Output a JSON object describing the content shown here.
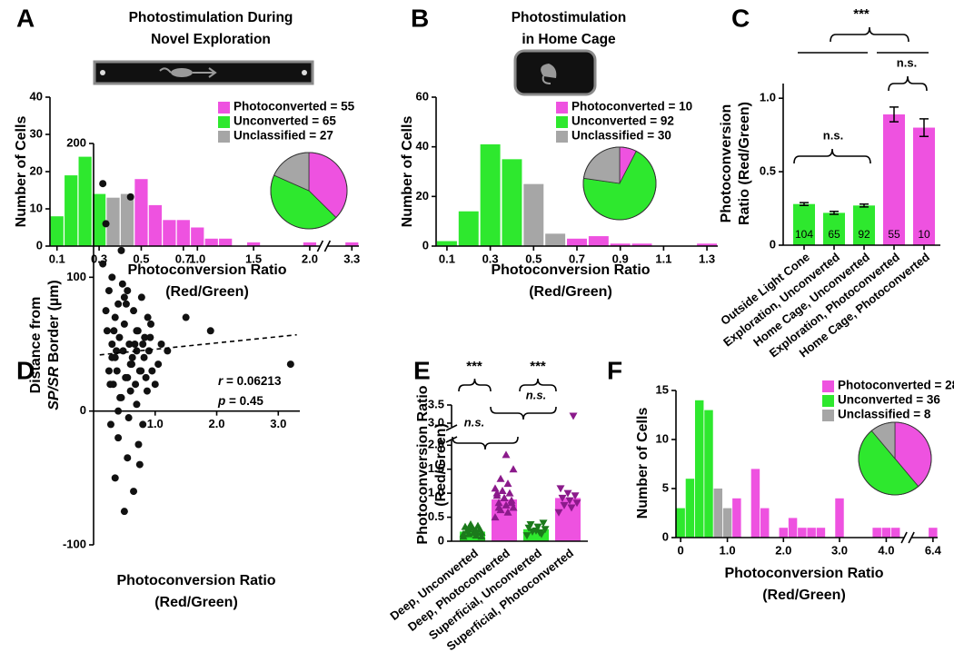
{
  "chart_data": [
    {
      "type": "histogram",
      "panel": "A",
      "title": [
        "Photostimulation During",
        "Novel Exploration"
      ],
      "xlabel": [
        "Photoconversion Ratio",
        "(Red/Green)"
      ],
      "ylabel": "Number of Cells",
      "categories": [
        "0.1",
        null,
        null,
        "0.3",
        null,
        null,
        "0.5",
        null,
        null,
        "0.7",
        "1.0",
        null,
        null,
        null,
        "1.5",
        null,
        null,
        null,
        "2.0",
        null,
        null,
        "3.3"
      ],
      "values": [
        8,
        19,
        24,
        14,
        13,
        14,
        18,
        11,
        7,
        7,
        5,
        2,
        2,
        0,
        1,
        0,
        0,
        0,
        1,
        0,
        0,
        1
      ],
      "colors": [
        "#2ee82e",
        "#2ee82e",
        "#2ee82e",
        "#2ee82e",
        "#a6a6a6",
        "#a6a6a6",
        "#ee52e0",
        "#ee52e0",
        "#ee52e0",
        "#ee52e0",
        "#ee52e0",
        "#ee52e0",
        "#ee52e0",
        "#ee52e0",
        "#ee52e0",
        "#ee52e0",
        "#ee52e0",
        "#ee52e0",
        "#ee52e0",
        "#ee52e0",
        "#ee52e0",
        "#ee52e0"
      ],
      "ylim": [
        0,
        40
      ],
      "yticks": [
        0,
        10,
        20,
        30,
        40
      ],
      "series": [
        {
          "name": "Photoconverted = 55",
          "color": "#ee52e0",
          "value": 55
        },
        {
          "name": "Unconverted = 65",
          "color": "#2ee82e",
          "value": 65
        },
        {
          "name": "Unclassified = 27",
          "color": "#a6a6a6",
          "value": 27
        }
      ]
    },
    {
      "type": "histogram",
      "panel": "B",
      "title": [
        "Photostimulation",
        "in Home Cage"
      ],
      "xlabel": [
        "Photoconversion Ratio",
        "(Red/Green)"
      ],
      "ylabel": "Number of Cells",
      "categories": [
        "0.1",
        null,
        "0.3",
        null,
        "0.5",
        null,
        "0.7",
        null,
        "0.9",
        null,
        "1.1",
        null,
        "1.3"
      ],
      "values": [
        2,
        14,
        41,
        35,
        25,
        5,
        3,
        4,
        1,
        1,
        0,
        0,
        1
      ],
      "colors": [
        "#2ee82e",
        "#2ee82e",
        "#2ee82e",
        "#2ee82e",
        "#a6a6a6",
        "#a6a6a6",
        "#ee52e0",
        "#ee52e0",
        "#ee52e0",
        "#ee52e0",
        "#ee52e0",
        "#ee52e0",
        "#ee52e0"
      ],
      "ylim": [
        0,
        60
      ],
      "yticks": [
        0,
        20,
        40,
        60
      ],
      "series": [
        {
          "name": "Photoconverted = 10",
          "color": "#ee52e0",
          "value": 10
        },
        {
          "name": "Unconverted = 92",
          "color": "#2ee82e",
          "value": 92
        },
        {
          "name": "Unclassified = 30",
          "color": "#a6a6a6",
          "value": 30
        }
      ]
    },
    {
      "type": "bar",
      "panel": "C",
      "ylabel": [
        "Photoconversion",
        "Ratio (Red/Green)"
      ],
      "categories": [
        "Outside Light Cone",
        "Exploration, Unconverted",
        "Home Cage, Unconverted",
        "Exploration, Photoconverted",
        "Home Cage, Photoconverted"
      ],
      "values": [
        0.28,
        0.22,
        0.27,
        0.89,
        0.8
      ],
      "errors": [
        0.01,
        0.01,
        0.01,
        0.05,
        0.06
      ],
      "n": [
        "104",
        "65",
        "92",
        "55",
        "10"
      ],
      "colors": [
        "#2ee82e",
        "#2ee82e",
        "#2ee82e",
        "#ee52e0",
        "#ee52e0"
      ],
      "ylim": [
        0,
        1.1
      ],
      "yticks": [
        0,
        0.5,
        {
          "value": 1,
          "label": "1.0"
        }
      ],
      "annotations": [
        "***",
        "n.s.",
        "n.s."
      ]
    },
    {
      "type": "scatter",
      "panel": "D",
      "xlabel": [
        "Photoconversion Ratio",
        "(Red/Green)"
      ],
      "ylabel": [
        "Distance from",
        [
          "SP/SR",
          " Border (µm)"
        ]
      ],
      "x": [
        0.15,
        0.2,
        0.22,
        0.25,
        0.28,
        0.3,
        0.3,
        0.32,
        0.35,
        0.35,
        0.38,
        0.4,
        0.4,
        0.42,
        0.45,
        0.45,
        0.48,
        0.5,
        0.5,
        0.52,
        0.55,
        0.55,
        0.58,
        0.6,
        0.6,
        0.62,
        0.65,
        0.65,
        0.68,
        0.7,
        0.7,
        0.72,
        0.75,
        0.78,
        0.8,
        0.8,
        0.82,
        0.85,
        0.88,
        0.9,
        0.92,
        0.95,
        1.0,
        1.05,
        1.1,
        1.2,
        1.5,
        1.9,
        3.2,
        0.25,
        0.33,
        0.43,
        0.53,
        0.63,
        0.73,
        0.83,
        0.93,
        0.27,
        0.37,
        0.47,
        0.57,
        0.67,
        0.77,
        0.87,
        0.2,
        0.3,
        0.4,
        0.5,
        0.6,
        0.7,
        0.15,
        0.35,
        0.55,
        0.75
      ],
      "y": [
        170,
        140,
        60,
        90,
        -10,
        40,
        100,
        20,
        70,
        -50,
        30,
        80,
        -20,
        55,
        10,
        120,
        45,
        -75,
        65,
        25,
        90,
        -35,
        50,
        15,
        160,
        35,
        75,
        -60,
        20,
        45,
        5,
        60,
        30,
        85,
        -10,
        50,
        40,
        25,
        70,
        45,
        55,
        30,
        20,
        35,
        50,
        45,
        70,
        60,
        35,
        30,
        60,
        10,
        80,
        40,
        -25,
        55,
        65,
        20,
        45,
        95,
        -5,
        50,
        30,
        15,
        75,
        50,
        0,
        85,
        35,
        60,
        110,
        40,
        25,
        -40
      ],
      "trend": {
        "x": [
          0.1,
          3.3
        ],
        "y": [
          42,
          57
        ]
      },
      "xlim": [
        0,
        3.35
      ],
      "xticks": [
        {
          "value": 1,
          "label": "1.0"
        },
        {
          "value": 2,
          "label": "2.0"
        },
        {
          "value": 3,
          "label": "3.0"
        }
      ],
      "ylim": [
        -100,
        200
      ],
      "yticks": [
        -100,
        0,
        100,
        200
      ],
      "stats": [
        [
          "r",
          " = 0.06213"
        ],
        [
          "p",
          " = 0.45"
        ]
      ]
    },
    {
      "type": "dotbar",
      "panel": "E",
      "ylabel": [
        "Photoconversion Ratio",
        "(Red/Green)"
      ],
      "categories": [
        "Deep, Unconverted",
        "Deep, Photoconverted",
        "Superficial, Unconverted",
        "Superficial, Photoconverted"
      ],
      "values": [
        0.2,
        0.87,
        0.25,
        0.9
      ],
      "colors": [
        "#2ee82e",
        "#ee52e0",
        "#2ee82e",
        "#ee52e0"
      ],
      "points": [
        [
          0.1,
          0.12,
          0.15,
          0.18,
          0.2,
          0.22,
          0.25,
          0.28,
          0.3,
          0.32,
          0.35,
          0.15,
          0.2,
          0.25,
          0.1,
          0.18
        ],
        [
          0.5,
          0.6,
          0.65,
          0.7,
          0.75,
          0.8,
          0.85,
          0.9,
          0.95,
          1.0,
          1.05,
          1.1,
          1.2,
          1.3,
          1.5,
          1.8,
          0.7,
          0.8,
          0.9,
          1.0
        ],
        [
          0.12,
          0.18,
          0.2,
          0.25,
          0.3,
          0.35,
          0.38,
          0.22,
          0.28,
          0.15
        ],
        [
          0.6,
          0.7,
          0.75,
          0.8,
          0.85,
          0.9,
          0.95,
          1.0,
          1.1,
          3.2
        ]
      ],
      "point_colors": [
        "#1b7a1b",
        "#8b1a8b",
        "#1b7a1b",
        "#8b1a8b"
      ],
      "markers": [
        "triangle-up",
        "triangle-up",
        "triangle-down",
        "triangle-down"
      ],
      "ylim": [
        0,
        3.5
      ],
      "ybreak": [
        2.1,
        2.9
      ],
      "yticks": [
        0,
        0.5,
        {
          "value": 1,
          "label": "1.0"
        },
        1.5,
        {
          "value": 2,
          "label": "2.0"
        },
        {
          "value": 3,
          "label": "3.0"
        },
        3.5
      ],
      "annotations": [
        "***",
        "***",
        "n.s.",
        "n.s."
      ]
    },
    {
      "type": "histogram",
      "panel": "F",
      "xlabel": [
        "Photoconversion Ratio",
        "(Red/Green)"
      ],
      "ylabel": "Number of Cells",
      "categories": [
        "0",
        null,
        null,
        null,
        null,
        "1.0",
        null,
        null,
        null,
        null,
        null,
        "2.0",
        null,
        null,
        null,
        null,
        null,
        "3.0",
        null,
        null,
        null,
        null,
        "4.0",
        null,
        null,
        null,
        null,
        "6.4"
      ],
      "values": [
        3,
        6,
        14,
        13,
        5,
        3,
        4,
        0,
        7,
        3,
        0,
        1,
        2,
        1,
        1,
        1,
        0,
        4,
        0,
        0,
        0,
        1,
        1,
        1,
        0,
        0,
        0,
        1
      ],
      "colors": [
        "#2ee82e",
        "#2ee82e",
        "#2ee82e",
        "#2ee82e",
        "#a6a6a6",
        "#a6a6a6",
        "#ee52e0",
        "#ee52e0",
        "#ee52e0",
        "#ee52e0",
        "#ee52e0",
        "#ee52e0",
        "#ee52e0",
        "#ee52e0",
        "#ee52e0",
        "#ee52e0",
        "#ee52e0",
        "#ee52e0",
        "#ee52e0",
        "#ee52e0",
        "#ee52e0",
        "#ee52e0",
        "#ee52e0",
        "#ee52e0",
        "#ee52e0",
        "#ee52e0",
        "#ee52e0",
        "#ee52e0"
      ],
      "ylim": [
        0,
        15
      ],
      "yticks": [
        0,
        5,
        10,
        15
      ],
      "series": [
        {
          "name": "Photoconverted = 28",
          "color": "#ee52e0",
          "value": 28
        },
        {
          "name": "Unconverted = 36",
          "color": "#2ee82e",
          "value": 36
        },
        {
          "name": "Unclassified = 8",
          "color": "#a6a6a6",
          "value": 8
        }
      ]
    }
  ]
}
